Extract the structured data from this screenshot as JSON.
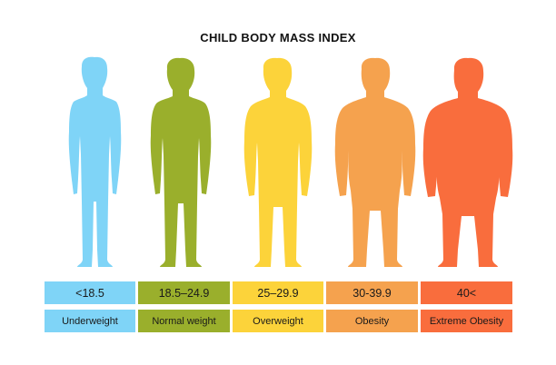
{
  "title": "CHILD BODY MASS INDEX",
  "categories": [
    {
      "range": "<18.5",
      "label": "Underweight",
      "color": "#7fd4f7",
      "body": "thin"
    },
    {
      "range": "18.5–24.9",
      "label": "Normal weight",
      "color": "#9aaf2c",
      "body": "normal"
    },
    {
      "range": "25–29.9",
      "label": "Overweight",
      "color": "#fcd33a",
      "body": "overweight"
    },
    {
      "range": "30-39.9",
      "label": "Obesity",
      "color": "#f5a24e",
      "body": "obese"
    },
    {
      "range": "40<",
      "label": "Extreme Obesity",
      "color": "#f96d3d",
      "body": "extreme"
    }
  ]
}
